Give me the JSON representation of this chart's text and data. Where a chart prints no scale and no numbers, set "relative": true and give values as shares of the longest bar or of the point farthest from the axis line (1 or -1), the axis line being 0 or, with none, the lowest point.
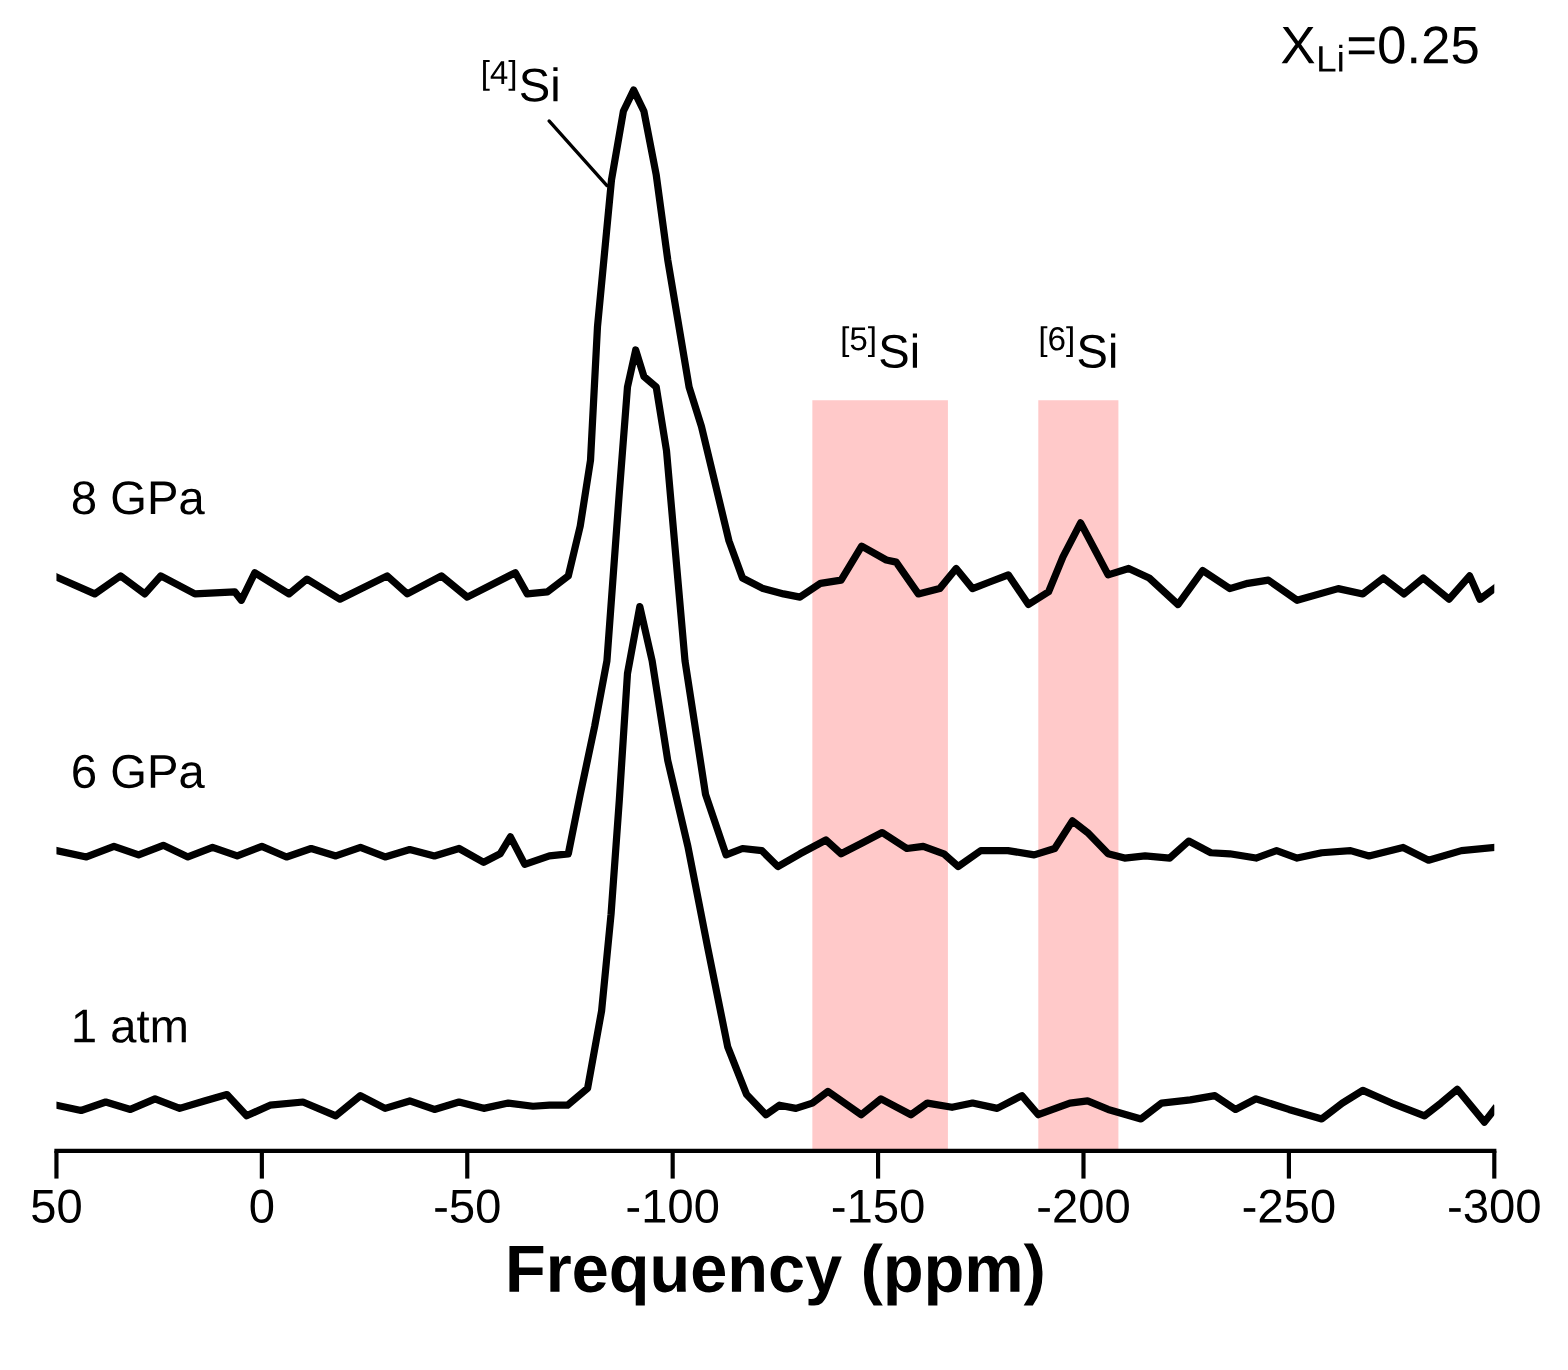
{
  "chart_data": {
    "type": "line",
    "relative": true,
    "xlabel": "Frequency (ppm)",
    "xlim": [
      50,
      -300
    ],
    "xticks": [
      50,
      0,
      -50,
      -100,
      -150,
      -200,
      -250,
      -300
    ],
    "grid": false,
    "legend": false,
    "marker": "none",
    "line_style": "solid",
    "series": [
      {
        "name": "8 GPa",
        "color": "#000000",
        "x": [
          50,
          40.7,
          34.4,
          28.5,
          24.6,
          16.3,
          6.6,
          5,
          1.7,
          -6.6,
          -11,
          -19,
          -30.5,
          -35.4,
          -43.7,
          -50,
          -61.7,
          -64.6,
          -69.5,
          -74.6,
          -77.5,
          -80,
          -81.7,
          -85.1,
          -88,
          -90.5,
          -93,
          -96,
          -98.8,
          -104,
          -107,
          -113.7,
          -117,
          -122,
          -127,
          -131,
          -136,
          -141,
          -146,
          -152,
          -154.4,
          -159.8,
          -165,
          -169,
          -173,
          -177,
          -181.7,
          -186.6,
          -191.5,
          -195,
          -199.3,
          -203,
          -206,
          -211,
          -216,
          -223,
          -229,
          -235.6,
          -240,
          -245,
          -252,
          -262,
          -268,
          -273,
          -278,
          -282.7,
          -289,
          -294,
          -296.5,
          -300
        ],
        "values": [
          0.541,
          0.525,
          0.542,
          0.525,
          0.542,
          0.525,
          0.527,
          0.519,
          0.545,
          0.525,
          0.539,
          0.52,
          0.542,
          0.525,
          0.542,
          0.522,
          0.545,
          0.525,
          0.527,
          0.542,
          0.589,
          0.651,
          0.777,
          0.915,
          0.98,
          1.0,
          0.98,
          0.92,
          0.84,
          0.72,
          0.683,
          0.575,
          0.54,
          0.53,
          0.525,
          0.522,
          0.535,
          0.538,
          0.57,
          0.557,
          0.555,
          0.525,
          0.53,
          0.549,
          0.53,
          0.536,
          0.543,
          0.515,
          0.527,
          0.56,
          0.592,
          0.565,
          0.543,
          0.549,
          0.54,
          0.515,
          0.547,
          0.53,
          0.535,
          0.538,
          0.519,
          0.53,
          0.525,
          0.54,
          0.525,
          0.54,
          0.52,
          0.542,
          0.52,
          0.53
        ]
      },
      {
        "name": "6 GPa",
        "color": "#000000",
        "x": [
          50,
          42.7,
          36,
          30,
          24,
          18,
          12,
          6,
          0,
          -6,
          -12,
          -18,
          -24,
          -30,
          -36,
          -42,
          -48,
          -54,
          -58,
          -60.5,
          -64,
          -70,
          -74.6,
          -77.5,
          -81,
          -84,
          -87,
          -89,
          -91,
          -93,
          -96,
          -98.5,
          -103,
          -108,
          -113,
          -117,
          -121.7,
          -125.6,
          -131,
          -137.3,
          -141,
          -146,
          -151,
          -157,
          -161,
          -166,
          -169.5,
          -175,
          -181.6,
          -188,
          -193,
          -197.3,
          -201,
          -206,
          -210,
          -215,
          -221,
          -225.6,
          -231,
          -235.6,
          -242,
          -247,
          -252,
          -258,
          -265,
          -269.5,
          -277.8,
          -284,
          -292,
          -300
        ],
        "values": [
          0.283,
          0.277,
          0.287,
          0.279,
          0.288,
          0.277,
          0.286,
          0.278,
          0.287,
          0.277,
          0.285,
          0.278,
          0.286,
          0.277,
          0.284,
          0.278,
          0.285,
          0.272,
          0.28,
          0.296,
          0.27,
          0.278,
          0.28,
          0.336,
          0.4,
          0.462,
          0.62,
          0.72,
          0.755,
          0.73,
          0.72,
          0.66,
          0.462,
          0.336,
          0.279,
          0.285,
          0.283,
          0.268,
          0.28,
          0.293,
          0.28,
          0.29,
          0.3,
          0.285,
          0.287,
          0.28,
          0.268,
          0.283,
          0.283,
          0.279,
          0.285,
          0.311,
          0.3,
          0.28,
          0.276,
          0.278,
          0.276,
          0.292,
          0.281,
          0.28,
          0.276,
          0.283,
          0.276,
          0.281,
          0.283,
          0.278,
          0.286,
          0.274,
          0.283,
          0.286
        ]
      },
      {
        "name": "1 atm",
        "color": "#000000",
        "x": [
          50,
          44,
          38,
          32,
          26,
          20,
          14,
          8.5,
          3.7,
          -2,
          -10,
          -18,
          -24,
          -30,
          -36,
          -42,
          -48,
          -54,
          -60,
          -66,
          -70,
          -74.4,
          -79.3,
          -82.7,
          -85,
          -87,
          -89,
          -92,
          -95,
          -98.8,
          -103.7,
          -108.5,
          -113.4,
          -118,
          -122.7,
          -126,
          -130,
          -134,
          -137.8,
          -145.9,
          -150.7,
          -158,
          -162,
          -168,
          -173,
          -179,
          -185,
          -189,
          -196.7,
          -201,
          -206,
          -214,
          -219,
          -226,
          -232,
          -237,
          -242,
          -250,
          -258,
          -263,
          -268,
          -275,
          -283,
          -287,
          -291,
          -297.6,
          -300
        ],
        "values": [
          0.043,
          0.038,
          0.046,
          0.039,
          0.049,
          0.04,
          0.047,
          0.053,
          0.033,
          0.043,
          0.046,
          0.033,
          0.052,
          0.04,
          0.047,
          0.039,
          0.046,
          0.04,
          0.045,
          0.042,
          0.043,
          0.043,
          0.059,
          0.132,
          0.223,
          0.33,
          0.45,
          0.513,
          0.462,
          0.368,
          0.287,
          0.192,
          0.098,
          0.053,
          0.034,
          0.043,
          0.04,
          0.045,
          0.056,
          0.034,
          0.049,
          0.034,
          0.045,
          0.041,
          0.045,
          0.04,
          0.052,
          0.034,
          0.045,
          0.047,
          0.039,
          0.03,
          0.045,
          0.048,
          0.052,
          0.039,
          0.049,
          0.039,
          0.03,
          0.045,
          0.057,
          0.045,
          0.033,
          0.045,
          0.058,
          0.027,
          0.039
        ]
      }
    ],
    "bands": [
      {
        "axis": "x",
        "from": -134,
        "to": -167,
        "label": "$^{[5]}$Si",
        "color": "#ffc9c9"
      },
      {
        "axis": "x",
        "from": -189,
        "to": -208.5,
        "label": "$^{[6]}$Si",
        "color": "#ffc9c9"
      }
    ],
    "annotations": [
      {
        "text": "$^{[4]}$Si",
        "x": -84,
        "y": 0.91
      },
      "X$_{Li}$=0.25"
    ]
  }
}
